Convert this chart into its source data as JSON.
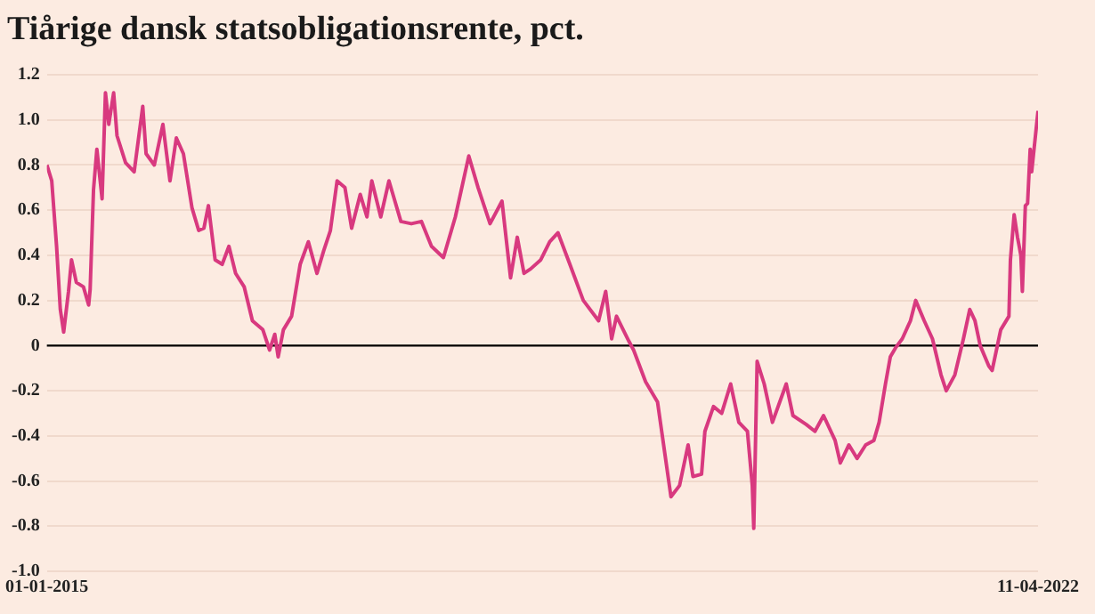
{
  "chart_data": {
    "type": "line",
    "title": "Tiårige dansk statsobligationsrente, pct.",
    "xlim": [
      "2015-01-01",
      "2022-04-11"
    ],
    "xticks": [
      {
        "value": "2015-01-01",
        "label": "01-01-2015"
      },
      {
        "value": "2022-04-11",
        "label": "11-04-2022"
      }
    ],
    "ylim": [
      -1.0,
      1.2
    ],
    "yticks": [
      {
        "value": 1.2,
        "label": "1.2"
      },
      {
        "value": 1.0,
        "label": "1.0"
      },
      0.8,
      0.6,
      0.4,
      0.2,
      0,
      -0.2,
      -0.4,
      -0.6,
      -0.8,
      {
        "value": -1.0,
        "label": "-1.0"
      }
    ],
    "grid": "y",
    "legend": false,
    "marker": "none",
    "line_style": "solid",
    "ref_lines": [
      {
        "axis": "y",
        "value": 0,
        "label": null,
        "color": "#000000"
      }
    ],
    "series": [
      {
        "color": "#d8397f",
        "x": [
          "2015-01-01",
          "2015-01-14",
          "2015-01-27",
          "2015-02-06",
          "2015-02-15",
          "2015-02-28",
          "2015-03-08",
          "2015-03-21",
          "2015-04-09",
          "2015-04-23",
          "2015-04-27",
          "2015-05-06",
          "2015-05-15",
          "2015-05-29",
          "2015-06-07",
          "2015-06-16",
          "2015-06-29",
          "2015-07-08",
          "2015-07-31",
          "2015-08-23",
          "2015-09-15",
          "2015-09-24",
          "2015-10-16",
          "2015-11-08",
          "2015-11-27",
          "2015-12-14",
          "2016-01-02",
          "2016-01-25",
          "2016-02-12",
          "2016-02-26",
          "2016-03-09",
          "2016-03-27",
          "2016-04-15",
          "2016-05-03",
          "2016-05-21",
          "2016-06-13",
          "2016-07-05",
          "2016-08-02",
          "2016-08-20",
          "2016-09-03",
          "2016-09-12",
          "2016-09-26",
          "2016-10-18",
          "2016-11-10",
          "2016-12-02",
          "2016-12-25",
          "2017-01-12",
          "2017-01-30",
          "2017-02-17",
          "2017-03-10",
          "2017-03-28",
          "2017-04-20",
          "2017-05-08",
          "2017-05-21",
          "2017-06-14",
          "2017-07-06",
          "2017-08-07",
          "2017-09-04",
          "2017-10-01",
          "2017-10-28",
          "2017-11-29",
          "2017-12-31",
          "2018-02-05",
          "2018-03-02",
          "2018-04-03",
          "2018-05-05",
          "2018-05-28",
          "2018-06-15",
          "2018-07-03",
          "2018-07-21",
          "2018-08-17",
          "2018-09-10",
          "2018-10-02",
          "2018-11-03",
          "2018-12-09",
          "2019-01-19",
          "2019-02-07",
          "2019-02-23",
          "2019-03-08",
          "2019-04-10",
          "2019-04-23",
          "2019-05-25",
          "2019-06-26",
          "2019-08-01",
          "2019-08-24",
          "2019-09-16",
          "2019-09-29",
          "2019-10-22",
          "2019-10-31",
          "2019-11-23",
          "2019-12-15",
          "2020-01-08",
          "2020-01-30",
          "2020-02-22",
          "2020-03-06",
          "2020-03-10",
          "2020-03-19",
          "2020-04-07",
          "2020-04-29",
          "2020-06-05",
          "2020-06-23",
          "2020-07-29",
          "2020-08-21",
          "2020-09-13",
          "2020-10-14",
          "2020-10-28",
          "2020-11-20",
          "2020-12-12",
          "2021-01-04",
          "2021-01-26",
          "2021-02-09",
          "2021-02-26",
          "2021-03-11",
          "2021-03-25",
          "2021-04-12",
          "2021-05-04",
          "2021-05-18",
          "2021-06-10",
          "2021-07-02",
          "2021-07-25",
          "2021-08-08",
          "2021-08-31",
          "2021-09-23",
          "2021-10-10",
          "2021-10-24",
          "2021-11-07",
          "2021-11-30",
          "2021-12-09",
          "2022-01-01",
          "2022-01-23",
          "2022-01-27",
          "2022-02-06",
          "2022-02-15",
          "2022-02-24",
          "2022-02-28",
          "2022-03-08",
          "2022-03-14",
          "2022-03-21",
          "2022-03-25",
          "2022-04-11"
        ],
        "values": [
          0.8,
          0.73,
          0.44,
          0.16,
          0.06,
          0.24,
          0.38,
          0.28,
          0.26,
          0.18,
          0.25,
          0.69,
          0.87,
          0.65,
          1.12,
          0.98,
          1.12,
          0.93,
          0.81,
          0.77,
          1.06,
          0.85,
          0.8,
          0.98,
          0.73,
          0.92,
          0.85,
          0.61,
          0.51,
          0.52,
          0.62,
          0.38,
          0.36,
          0.44,
          0.32,
          0.26,
          0.11,
          0.07,
          -0.02,
          0.05,
          -0.05,
          0.07,
          0.13,
          0.36,
          0.46,
          0.32,
          0.42,
          0.51,
          0.73,
          0.7,
          0.52,
          0.67,
          0.57,
          0.73,
          0.57,
          0.73,
          0.55,
          0.54,
          0.55,
          0.44,
          0.39,
          0.57,
          0.84,
          0.7,
          0.54,
          0.64,
          0.3,
          0.48,
          0.32,
          0.34,
          0.38,
          0.46,
          0.5,
          0.36,
          0.2,
          0.11,
          0.24,
          0.03,
          0.13,
          0.02,
          -0.02,
          -0.16,
          -0.25,
          -0.67,
          -0.62,
          -0.44,
          -0.58,
          -0.57,
          -0.38,
          -0.27,
          -0.3,
          -0.17,
          -0.34,
          -0.38,
          -0.62,
          -0.81,
          -0.07,
          -0.17,
          -0.34,
          -0.17,
          -0.31,
          -0.35,
          -0.38,
          -0.31,
          -0.42,
          -0.52,
          -0.44,
          -0.5,
          -0.44,
          -0.42,
          -0.34,
          -0.17,
          -0.05,
          -0.01,
          0.03,
          0.11,
          0.2,
          0.11,
          0.03,
          -0.13,
          -0.2,
          -0.13,
          0.03,
          0.16,
          0.11,
          0.0,
          -0.09,
          -0.11,
          0.07,
          0.13,
          0.38,
          0.58,
          0.48,
          0.4,
          0.24,
          0.62,
          0.63,
          0.87,
          0.77,
          1.04
        ]
      }
    ]
  }
}
